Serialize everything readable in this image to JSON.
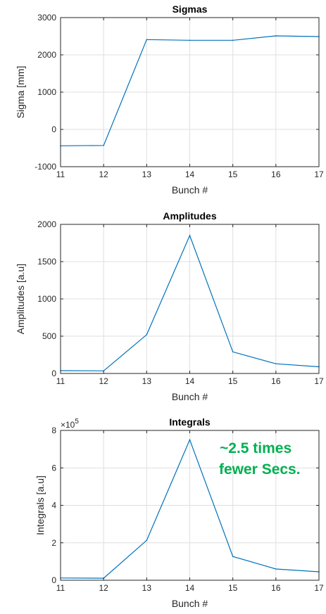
{
  "chart_data": [
    {
      "type": "line",
      "title": "Sigmas",
      "xlabel": "Bunch #",
      "ylabel": "Sigma [mm]",
      "x": [
        11,
        12,
        13,
        14,
        15,
        16,
        17
      ],
      "values": [
        -440,
        -430,
        2410,
        2390,
        2390,
        2510,
        2490
      ],
      "xlim": [
        11,
        17
      ],
      "ylim": [
        -1000,
        3000
      ],
      "yticks": [
        -1000,
        0,
        1000,
        2000,
        3000
      ],
      "yticklabels": [
        "-1000",
        "0",
        "1000",
        "2000",
        "3000"
      ],
      "xticks": [
        11,
        12,
        13,
        14,
        15,
        16,
        17
      ],
      "grid": true,
      "color": "#0072bd"
    },
    {
      "type": "line",
      "title": "Amplitudes",
      "xlabel": "Bunch #",
      "ylabel": "Amplitudes [a.u]",
      "x": [
        11,
        12,
        13,
        14,
        15,
        16,
        17
      ],
      "values": [
        38,
        35,
        520,
        1850,
        290,
        130,
        90
      ],
      "xlim": [
        11,
        17
      ],
      "ylim": [
        0,
        2000
      ],
      "yticks": [
        0,
        500,
        1000,
        1500,
        2000
      ],
      "yticklabels": [
        "0",
        "500",
        "1000",
        "1500",
        "2000"
      ],
      "xticks": [
        11,
        12,
        13,
        14,
        15,
        16,
        17
      ],
      "grid": true,
      "color": "#0072bd"
    },
    {
      "type": "line",
      "title": "Integrals",
      "xlabel": "Bunch #",
      "ylabel": "Integrals [a.u]",
      "x": [
        11,
        12,
        13,
        14,
        15,
        16,
        17
      ],
      "values": [
        12000,
        11000,
        213000,
        750000,
        127000,
        60000,
        45000
      ],
      "xlim": [
        11,
        17
      ],
      "ylim": [
        0,
        800000
      ],
      "yticks": [
        0,
        200000,
        400000,
        600000,
        800000
      ],
      "yticklabels": [
        "0",
        "2",
        "4",
        "6",
        "8"
      ],
      "xticks": [
        11,
        12,
        13,
        14,
        15,
        16,
        17
      ],
      "exponent_label": "×10",
      "exponent_power": "5",
      "annotation": [
        "~2.5 times",
        "fewer Secs."
      ],
      "annotation_color": "#00b050",
      "grid": true,
      "color": "#0072bd"
    }
  ]
}
